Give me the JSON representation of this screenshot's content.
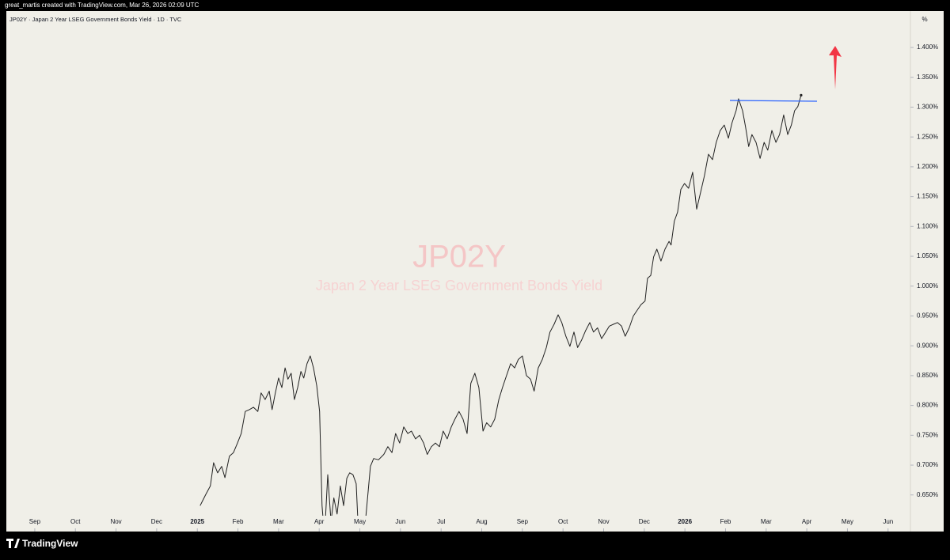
{
  "header": {
    "credit": "great_martis created with TradingView.com, Mar 26, 2026 02:09 UTC",
    "brand": "TradingView"
  },
  "chart_data": {
    "type": "line",
    "title": "JP02Y · Japan 2 Year LSEG Government Bonds Yield · 1D · TVC",
    "watermark_symbol": "JP02Y",
    "watermark_name": "Japan 2 Year LSEG Government Bonds Yield",
    "y_unit": "%",
    "x": [
      4.07,
      4.21,
      4.32,
      4.4,
      4.5,
      4.6,
      4.68,
      4.79,
      4.89,
      4.99,
      5.08,
      5.18,
      5.28,
      5.38,
      5.49,
      5.57,
      5.67,
      5.77,
      5.84,
      5.92,
      6.0,
      6.08,
      6.16,
      6.23,
      6.31,
      6.39,
      6.47,
      6.55,
      6.62,
      6.7,
      6.78,
      6.86,
      6.94,
      7.01,
      7.07,
      7.13,
      7.21,
      7.29,
      7.36,
      7.44,
      7.52,
      7.6,
      7.68,
      7.75,
      7.83,
      7.91,
      7.97,
      8.1,
      8.26,
      8.34,
      8.46,
      8.59,
      8.69,
      8.79,
      8.88,
      8.98,
      9.08,
      9.18,
      9.27,
      9.37,
      9.47,
      9.57,
      9.66,
      9.76,
      9.86,
      9.96,
      10.05,
      10.15,
      10.25,
      10.34,
      10.44,
      10.54,
      10.64,
      10.73,
      10.83,
      10.93,
      11.03,
      11.12,
      11.22,
      11.32,
      11.42,
      11.51,
      11.61,
      11.71,
      11.81,
      11.9,
      12.0,
      12.1,
      12.2,
      12.29,
      12.39,
      12.49,
      12.59,
      12.68,
      12.78,
      12.88,
      12.97,
      13.07,
      13.17,
      13.27,
      13.36,
      13.46,
      13.56,
      13.66,
      13.75,
      13.85,
      13.95,
      14.05,
      14.14,
      14.24,
      14.34,
      14.44,
      14.53,
      14.63,
      14.73,
      14.83,
      14.92,
      15.02,
      15.08,
      15.16,
      15.23,
      15.31,
      15.41,
      15.51,
      15.61,
      15.66,
      15.74,
      15.82,
      15.9,
      15.99,
      16.09,
      16.19,
      16.29,
      16.38,
      16.48,
      16.58,
      16.68,
      16.77,
      16.87,
      16.97,
      17.07,
      17.16,
      17.26,
      17.32,
      17.42,
      17.49,
      17.57,
      17.65,
      17.75,
      17.85,
      17.95,
      18.04,
      18.14,
      18.24,
      18.33,
      18.43,
      18.53,
      18.62,
      18.7,
      18.78,
      18.86
    ],
    "series": [
      {
        "name": "JP02Y",
        "color": "#222222",
        "values": [
          0.632,
          0.651,
          0.665,
          0.704,
          0.687,
          0.698,
          0.679,
          0.715,
          0.721,
          0.737,
          0.753,
          0.79,
          0.793,
          0.797,
          0.79,
          0.821,
          0.81,
          0.824,
          0.793,
          0.821,
          0.846,
          0.83,
          0.863,
          0.844,
          0.854,
          0.81,
          0.83,
          0.857,
          0.846,
          0.87,
          0.883,
          0.863,
          0.833,
          0.79,
          0.632,
          0.58,
          0.684,
          0.605,
          0.645,
          0.618,
          0.665,
          0.632,
          0.678,
          0.687,
          0.684,
          0.669,
          0.58,
          0.578,
          0.698,
          0.711,
          0.709,
          0.718,
          0.731,
          0.721,
          0.753,
          0.737,
          0.764,
          0.753,
          0.757,
          0.744,
          0.75,
          0.737,
          0.718,
          0.731,
          0.737,
          0.731,
          0.757,
          0.744,
          0.764,
          0.777,
          0.79,
          0.777,
          0.753,
          0.837,
          0.854,
          0.83,
          0.757,
          0.771,
          0.764,
          0.777,
          0.81,
          0.83,
          0.85,
          0.87,
          0.863,
          0.877,
          0.883,
          0.85,
          0.844,
          0.824,
          0.863,
          0.877,
          0.897,
          0.923,
          0.936,
          0.952,
          0.939,
          0.916,
          0.899,
          0.923,
          0.897,
          0.91,
          0.926,
          0.939,
          0.923,
          0.93,
          0.912,
          0.923,
          0.933,
          0.936,
          0.939,
          0.933,
          0.916,
          0.93,
          0.95,
          0.96,
          0.969,
          0.975,
          1.013,
          1.018,
          1.049,
          1.062,
          1.042,
          1.062,
          1.075,
          1.069,
          1.109,
          1.124,
          1.162,
          1.172,
          1.164,
          1.191,
          1.129,
          1.155,
          1.185,
          1.221,
          1.212,
          1.241,
          1.261,
          1.27,
          1.248,
          1.274,
          1.294,
          1.314,
          1.294,
          1.268,
          1.234,
          1.254,
          1.241,
          1.214,
          1.241,
          1.228,
          1.261,
          1.241,
          1.254,
          1.287,
          1.254,
          1.27,
          1.294,
          1.301,
          1.32
        ]
      }
    ],
    "xlim": [
      -0.7,
      21.55
    ],
    "xticks": [
      {
        "value": 0,
        "label": "Sep"
      },
      {
        "value": 1,
        "label": "Oct"
      },
      {
        "value": 2,
        "label": "Nov"
      },
      {
        "value": 3,
        "label": "Dec"
      },
      {
        "value": 4,
        "label": "2025"
      },
      {
        "value": 5,
        "label": "Feb"
      },
      {
        "value": 6,
        "label": "Mar"
      },
      {
        "value": 7,
        "label": "Apr"
      },
      {
        "value": 8,
        "label": "May"
      },
      {
        "value": 9,
        "label": "Jun"
      },
      {
        "value": 10,
        "label": "Jul"
      },
      {
        "value": 11,
        "label": "Aug"
      },
      {
        "value": 12,
        "label": "Sep"
      },
      {
        "value": 13,
        "label": "Oct"
      },
      {
        "value": 14,
        "label": "Nov"
      },
      {
        "value": 15,
        "label": "Dec"
      },
      {
        "value": 16,
        "label": "2026"
      },
      {
        "value": 17,
        "label": "Feb"
      },
      {
        "value": 18,
        "label": "Mar"
      },
      {
        "value": 19,
        "label": "Apr"
      },
      {
        "value": 20,
        "label": "May"
      },
      {
        "value": 21,
        "label": "Jun"
      }
    ],
    "ylim": [
      0.594,
      1.461
    ],
    "yticks": [
      {
        "value": 0.65,
        "label": "0.650%"
      },
      {
        "value": 0.7,
        "label": "0.700%"
      },
      {
        "value": 0.75,
        "label": "0.750%"
      },
      {
        "value": 0.8,
        "label": "0.800%"
      },
      {
        "value": 0.85,
        "label": "0.850%"
      },
      {
        "value": 0.9,
        "label": "0.900%"
      },
      {
        "value": 0.95,
        "label": "0.950%"
      },
      {
        "value": 1.0,
        "label": "1.000%"
      },
      {
        "value": 1.05,
        "label": "1.050%"
      },
      {
        "value": 1.1,
        "label": "1.100%"
      },
      {
        "value": 1.15,
        "label": "1.150%"
      },
      {
        "value": 1.2,
        "label": "1.200%"
      },
      {
        "value": 1.25,
        "label": "1.250%"
      },
      {
        "value": 1.3,
        "label": "1.300%"
      },
      {
        "value": 1.35,
        "label": "1.350%"
      },
      {
        "value": 1.4,
        "label": "1.400%"
      }
    ],
    "grid": false
  }
}
